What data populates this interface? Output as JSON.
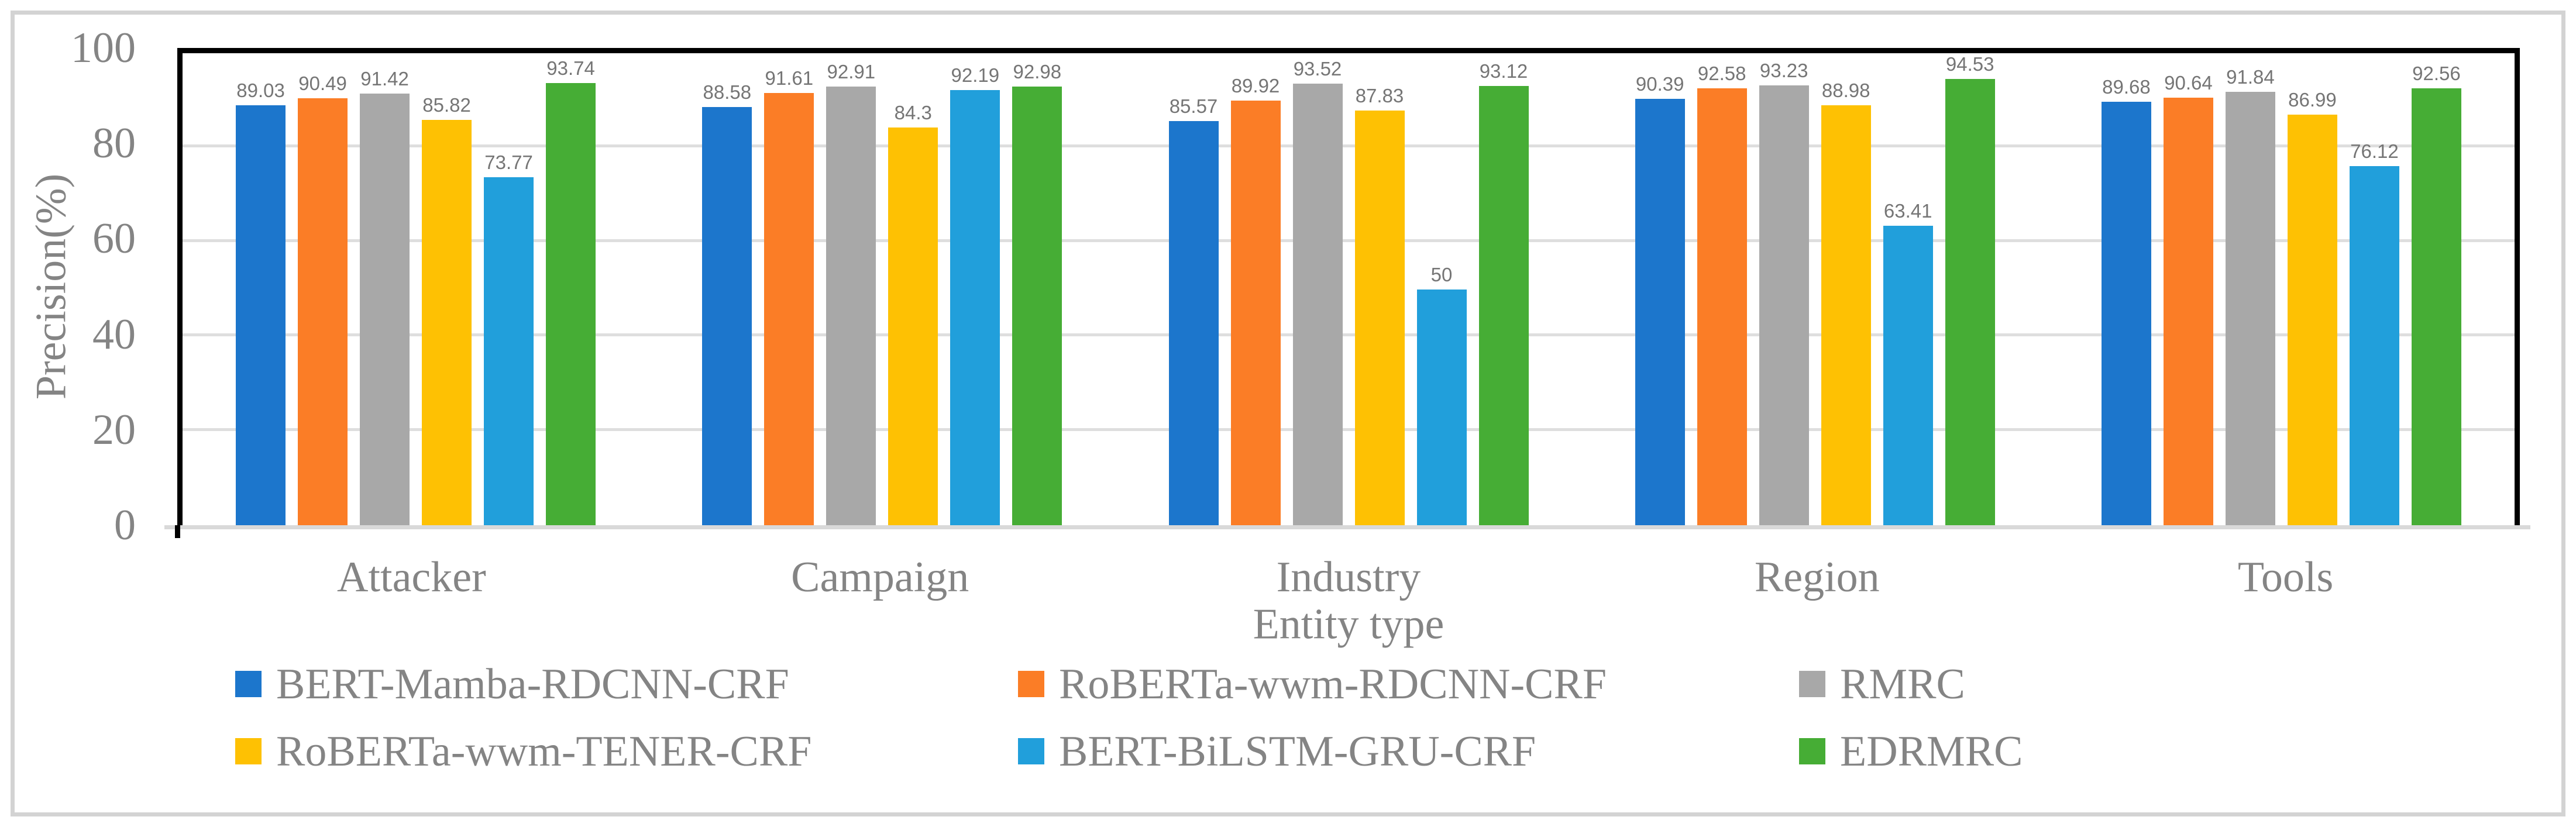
{
  "figure": {
    "background_color": "#ffffff",
    "frame_border_color": "#d3d3d3",
    "plot_border_color": "#000000",
    "gridline_color": "#dedede",
    "axis_line_color": "#d9d9d9",
    "axis_text_color": "#848484",
    "data_label_color": "#757575"
  },
  "chart_data": {
    "type": "bar",
    "title": "",
    "xlabel": "Entity type",
    "ylabel": "Precision(%)",
    "ylim": [
      0,
      100
    ],
    "yticks": [
      "0",
      "20",
      "40",
      "60",
      "80",
      "100"
    ],
    "gridline_values": [
      20,
      40,
      60,
      80
    ],
    "grid": "horizontal",
    "legend_position": "bottom",
    "legend_columns": 3,
    "categories": [
      "Attacker",
      "Campaign",
      "Industry",
      "Region",
      "Tools"
    ],
    "series": [
      {
        "name": "BERT-Mamba-RDCNN-CRF",
        "color": "#1c76cc",
        "values": [
          89.03,
          88.58,
          85.57,
          90.39,
          89.68
        ],
        "labels": [
          "89.03",
          "88.58",
          "85.57",
          "90.39",
          "89.68"
        ]
      },
      {
        "name": "RoBERTa-wwm-RDCNN-CRF",
        "color": "#fb7d26",
        "values": [
          90.49,
          91.61,
          89.92,
          92.58,
          90.64
        ],
        "labels": [
          "90.49",
          "91.61",
          "89.92",
          "92.58",
          "90.64"
        ]
      },
      {
        "name": "RMRC",
        "color": "#a8a8a8",
        "values": [
          91.42,
          92.91,
          93.52,
          93.23,
          91.84
        ],
        "labels": [
          "91.42",
          "92.91",
          "93.52",
          "93.23",
          "91.84"
        ]
      },
      {
        "name": "RoBERTa-wwm-TENER-CRF",
        "color": "#fec103",
        "values": [
          85.82,
          84.3,
          87.83,
          88.98,
          86.99
        ],
        "labels": [
          "85.82",
          "84.3",
          "87.83",
          "88.98",
          "86.99"
        ]
      },
      {
        "name": "BERT-BiLSTM-GRU-CRF",
        "color": "#219fdb",
        "values": [
          73.77,
          92.19,
          50,
          63.41,
          76.12
        ],
        "labels": [
          "73.77",
          "92.19",
          "50",
          "63.41",
          "76.12"
        ]
      },
      {
        "name": "EDRMRC",
        "color": "#46ad35",
        "values": [
          93.74,
          92.98,
          93.12,
          94.53,
          92.56
        ],
        "labels": [
          "93.74",
          "92.98",
          "93.12",
          "94.53",
          "92.56"
        ]
      }
    ]
  }
}
